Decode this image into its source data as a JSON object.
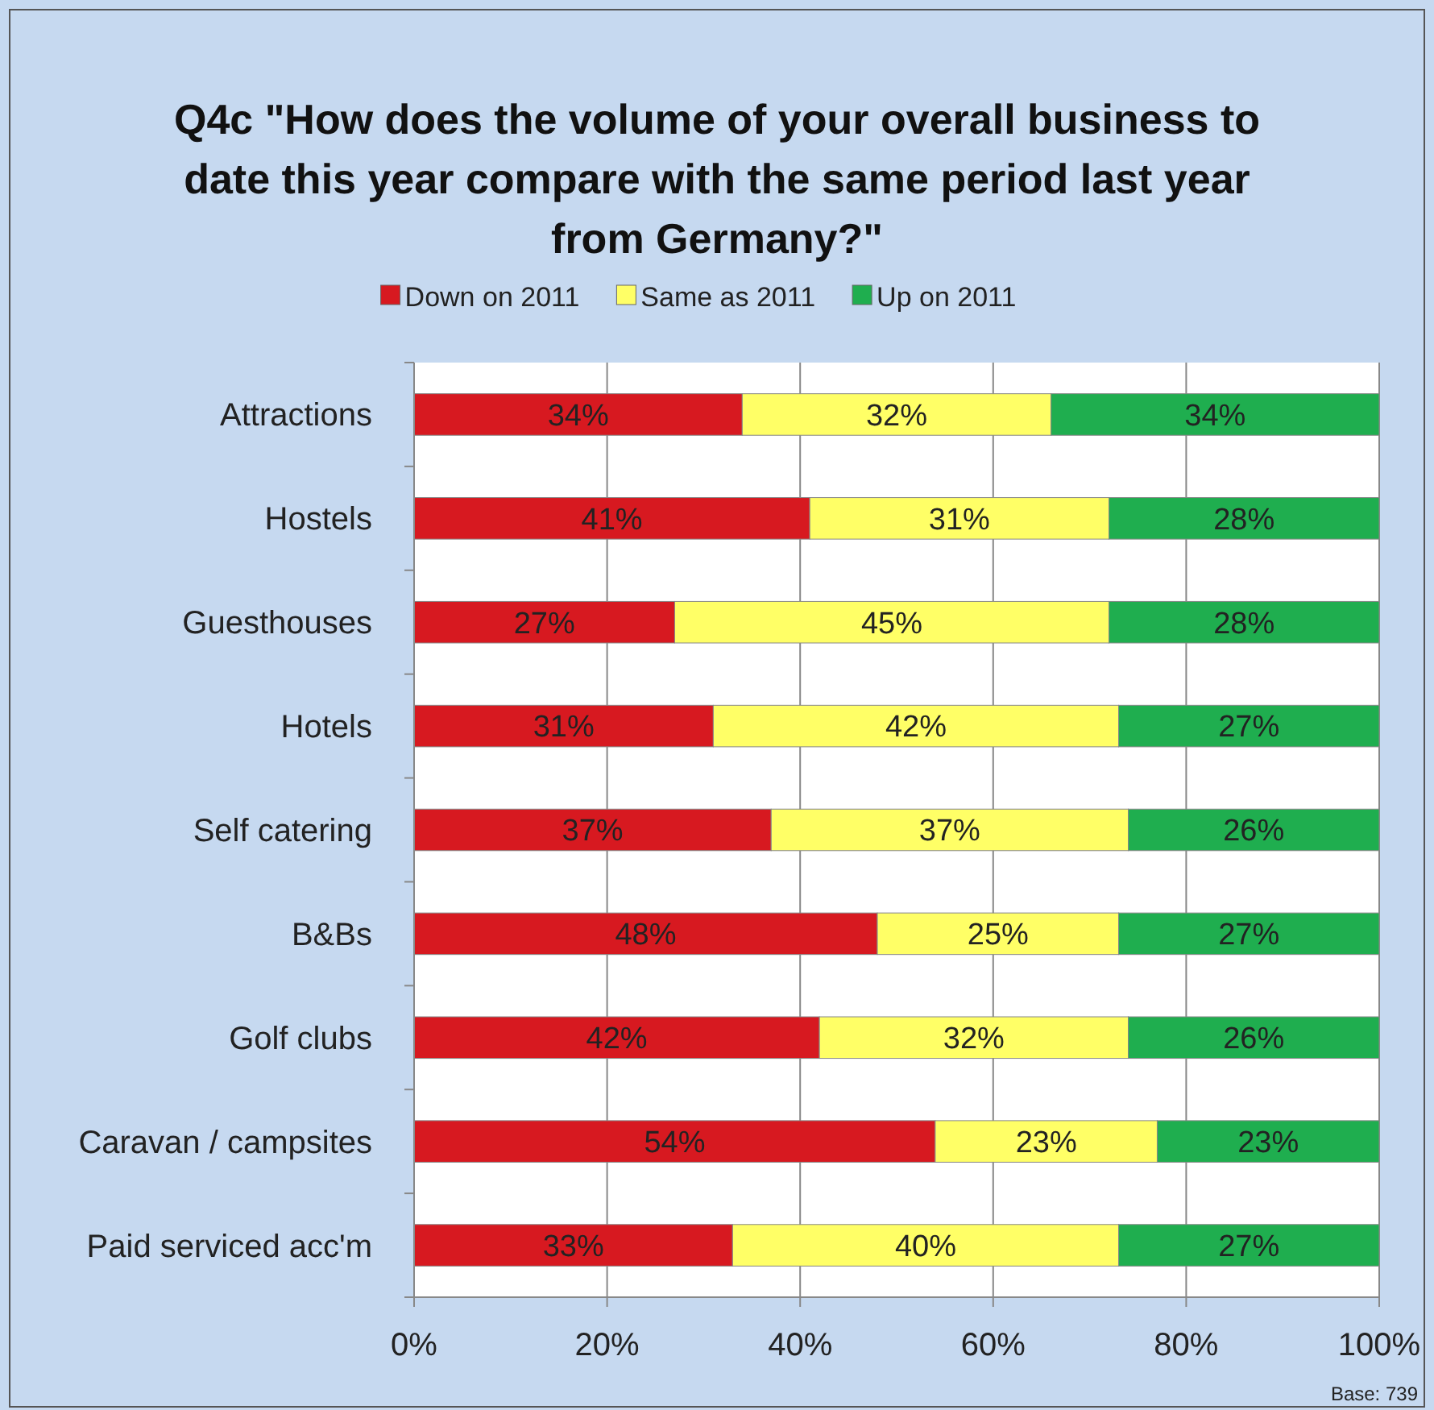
{
  "chart_data": {
    "type": "bar",
    "orientation": "horizontal",
    "stacked": true,
    "title": "Q4c \"How does the volume of your overall business to date this year compare with the same period last year from Germany?\"",
    "categories": [
      "Attractions",
      "Hostels",
      "Guesthouses",
      "Hotels",
      "Self catering",
      "B&Bs",
      "Golf clubs",
      "Caravan / campsites",
      "Paid serviced acc'm"
    ],
    "series": [
      {
        "name": "Down on 2011",
        "color": "#d71920",
        "values": [
          34,
          41,
          27,
          31,
          37,
          48,
          42,
          54,
          33
        ],
        "value_labels": [
          "34%",
          "41%",
          "27%",
          "31%",
          "37%",
          "48%",
          "42%",
          "54%",
          "33%"
        ]
      },
      {
        "name": "Same as 2011",
        "color": "#ffff66",
        "values": [
          32,
          31,
          45,
          42,
          37,
          25,
          32,
          23,
          40
        ],
        "value_labels": [
          "32%",
          "31%",
          "45%",
          "42%",
          "37%",
          "25%",
          "32%",
          "23%",
          "40%"
        ]
      },
      {
        "name": "Up on 2011",
        "color": "#1fae4f",
        "values": [
          34,
          28,
          28,
          27,
          26,
          27,
          26,
          23,
          27
        ],
        "value_labels": [
          "34%",
          "28%",
          "28%",
          "27%",
          "26%",
          "27%",
          "26%",
          "23%",
          "27%"
        ]
      }
    ],
    "xlim": [
      0,
      100
    ],
    "xticks": [
      {
        "value": 0,
        "label": "0%"
      },
      {
        "value": 20,
        "label": "20%"
      },
      {
        "value": 40,
        "label": "40%"
      },
      {
        "value": 60,
        "label": "60%"
      },
      {
        "value": 80,
        "label": "80%"
      },
      {
        "value": 100,
        "label": "100%"
      }
    ],
    "grid": "x",
    "legend": "top",
    "annotations": [
      "Base: 739"
    ]
  }
}
